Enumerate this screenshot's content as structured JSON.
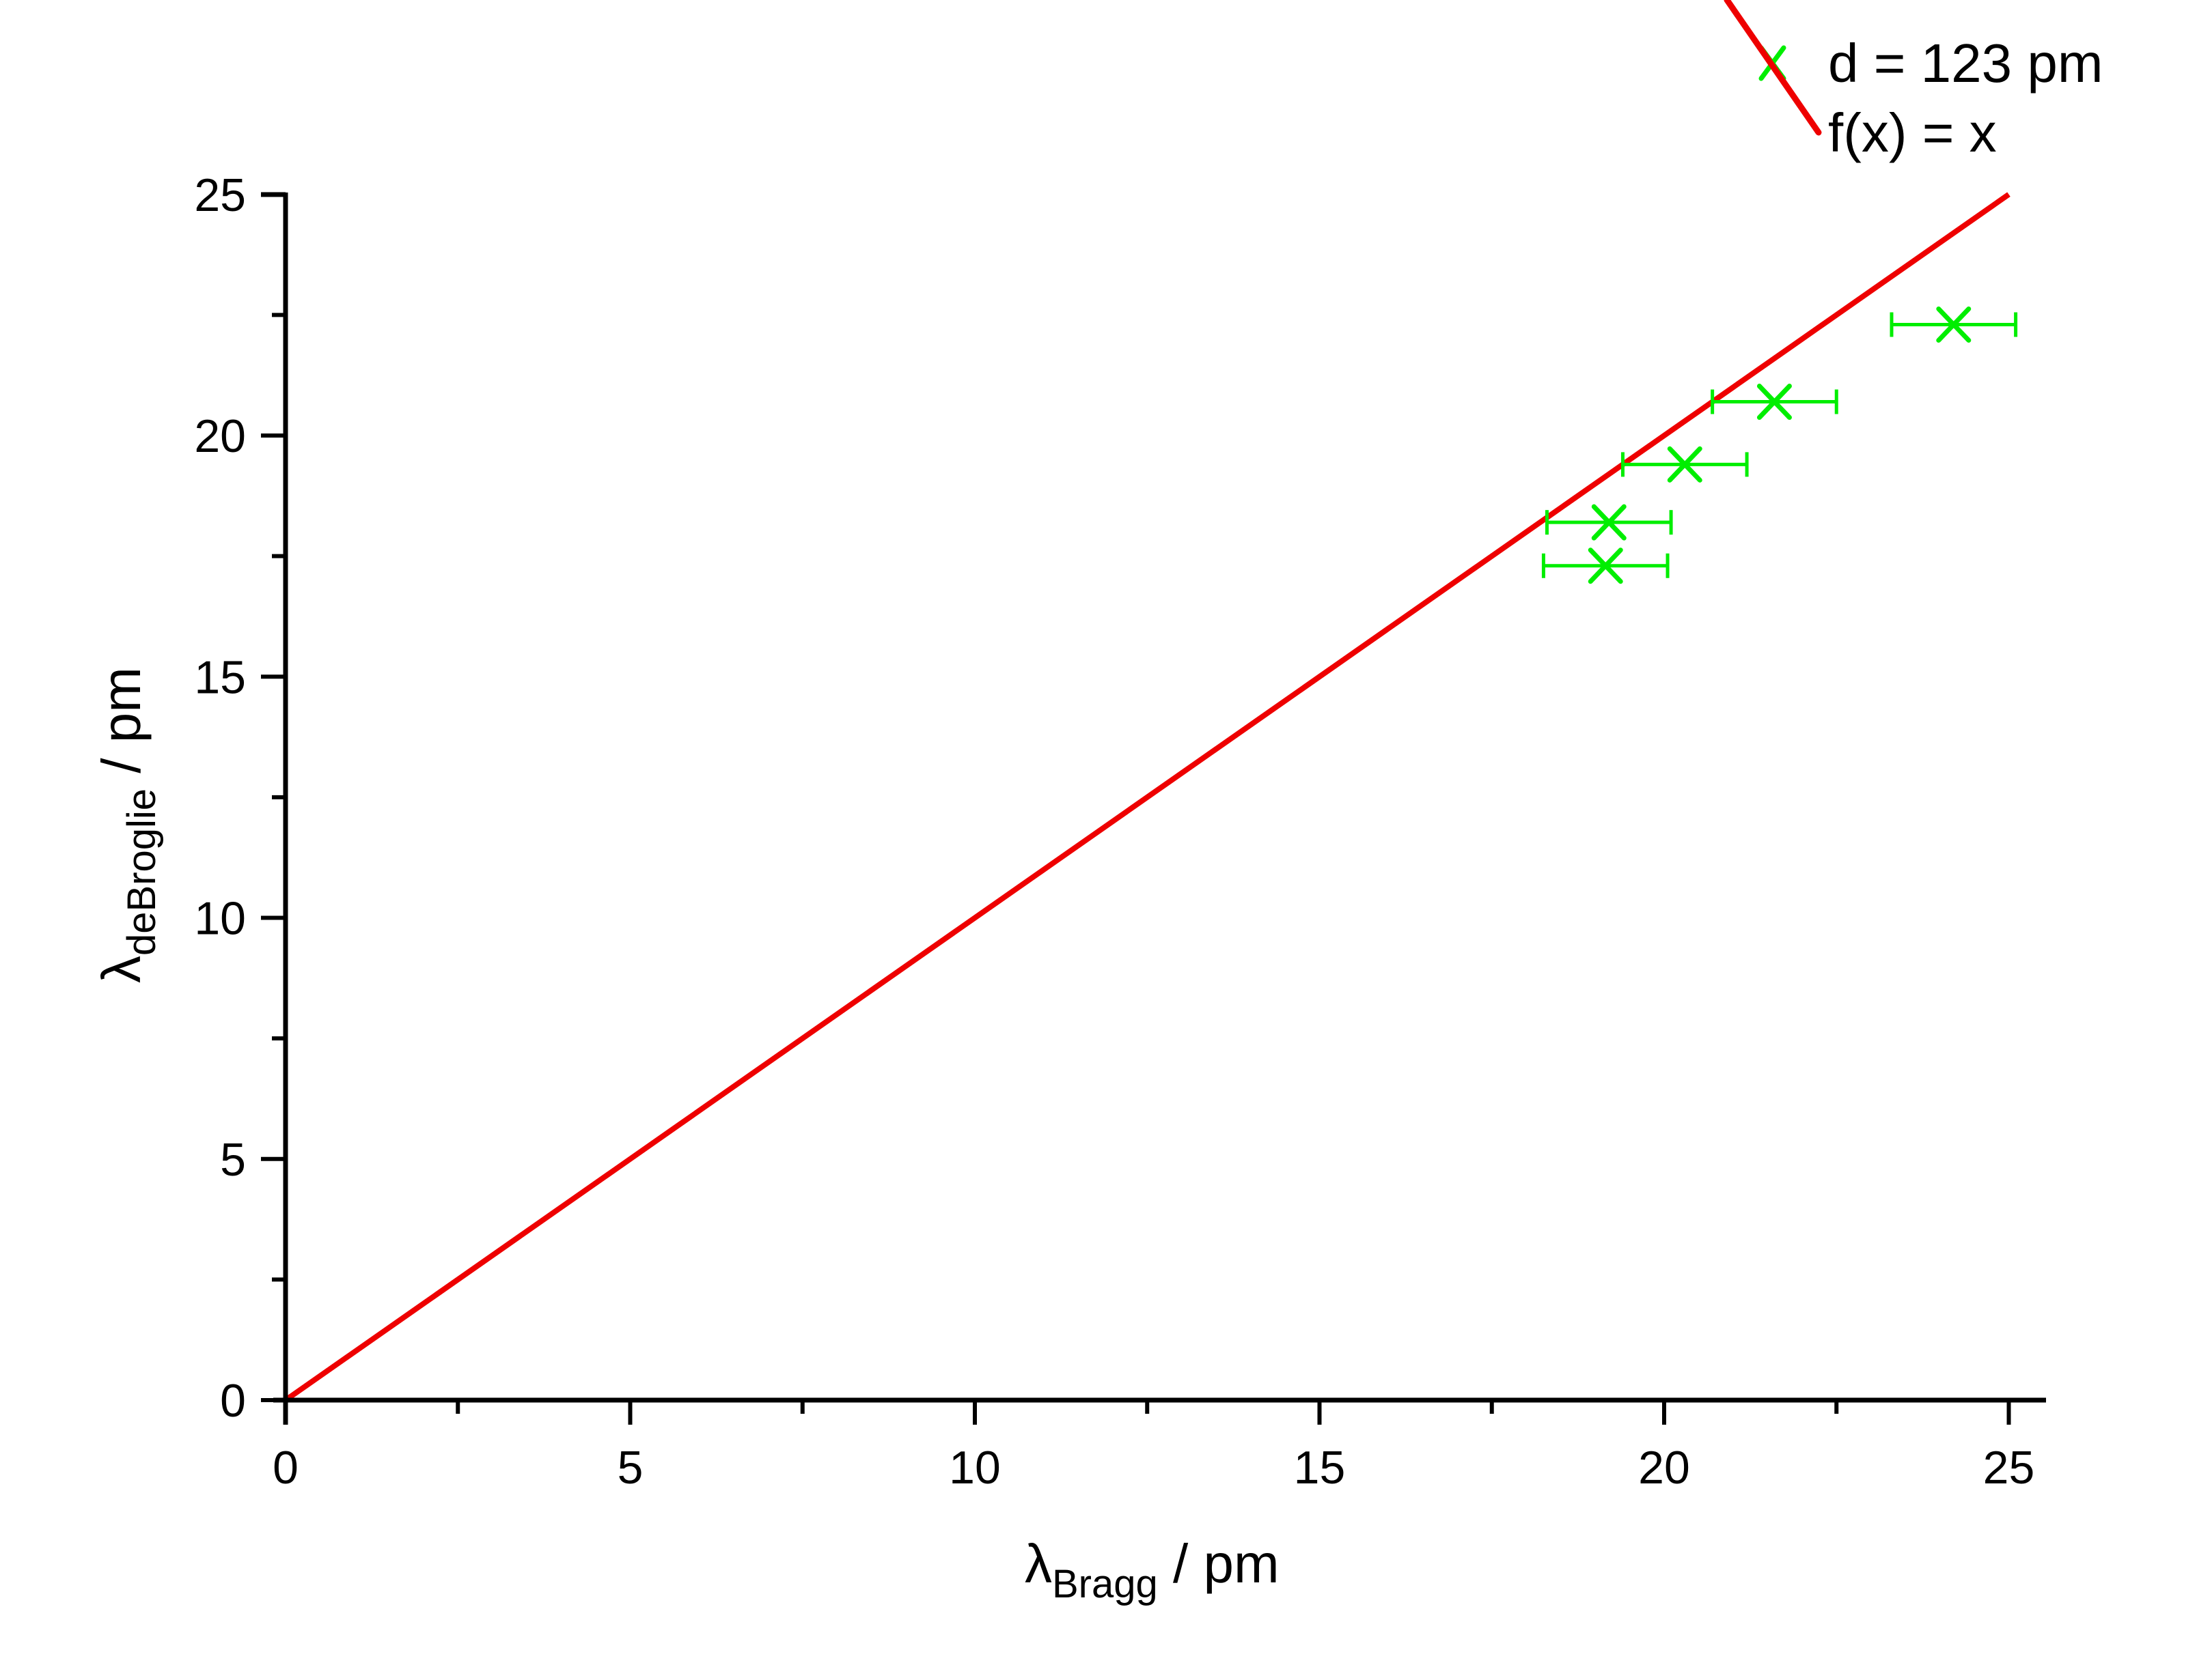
{
  "chart_data": {
    "type": "scatter",
    "title": "",
    "xlabel": "λ_Bragg / pm",
    "ylabel": "λ_deBroglie / pm",
    "xlabel_parts": {
      "symbol": "λ",
      "sub": "Bragg",
      "unit": " / pm"
    },
    "ylabel_parts": {
      "symbol": "λ",
      "sub": "deBroglie",
      "unit": " / pm"
    },
    "xlim": [
      0,
      25.5
    ],
    "ylim": [
      0,
      25
    ],
    "xticks": [
      0,
      5,
      10,
      15,
      20,
      25
    ],
    "yticks": [
      0,
      5,
      10,
      15,
      20,
      25
    ],
    "grid": false,
    "legend_position": "top-right (outside plot)",
    "series": [
      {
        "name": "d = 123 pm",
        "kind": "scatter",
        "marker": "x",
        "color": "#00ee00",
        "points": [
          {
            "x": 19.15,
            "y": 17.3,
            "xerr": 0.9
          },
          {
            "x": 19.2,
            "y": 18.2,
            "xerr": 0.9
          },
          {
            "x": 20.3,
            "y": 19.4,
            "xerr": 0.9
          },
          {
            "x": 21.6,
            "y": 20.7,
            "xerr": 0.9
          },
          {
            "x": 24.2,
            "y": 22.3,
            "xerr": 0.9
          }
        ]
      },
      {
        "name": "f(x) = x",
        "kind": "line",
        "color": "#ee0000",
        "x": [
          0,
          25
        ],
        "y": [
          0,
          25
        ]
      }
    ]
  },
  "legend": {
    "items": [
      {
        "label": "d = 123 pm"
      },
      {
        "label": "f(x) = x"
      }
    ]
  }
}
